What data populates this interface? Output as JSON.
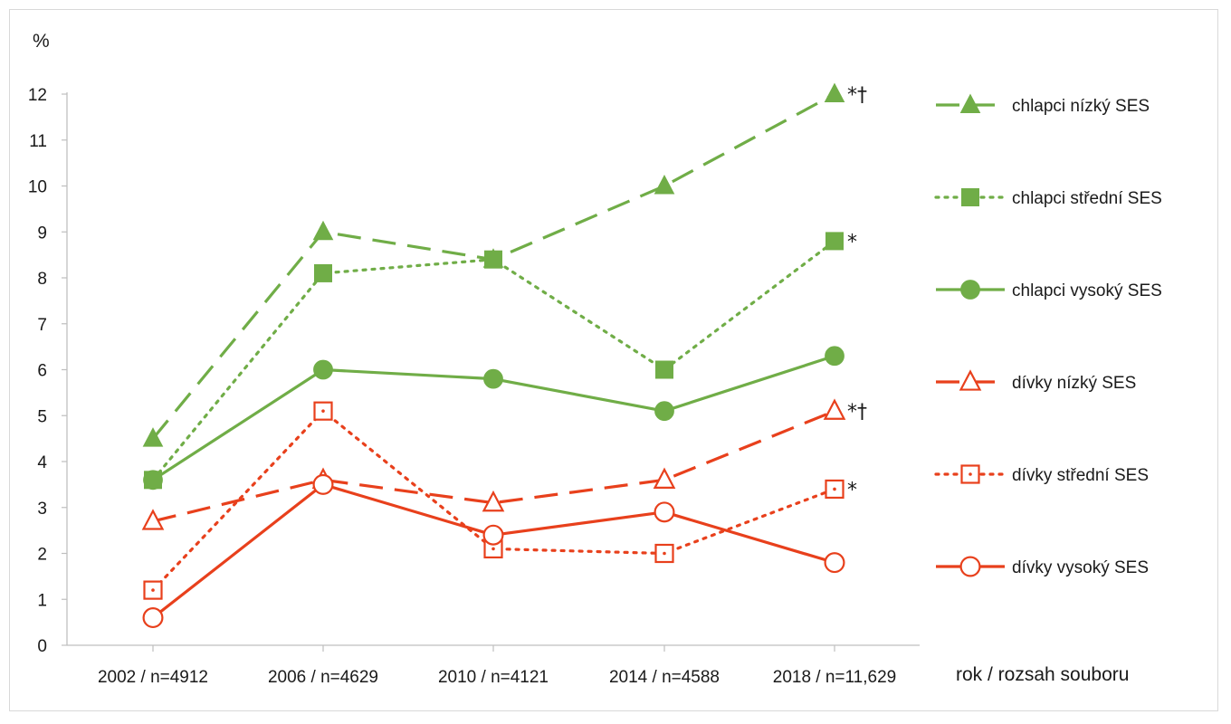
{
  "chart_data": {
    "type": "line",
    "ylabel": "%",
    "xlabel": "rok / rozsah souboru",
    "ylim": [
      0,
      12
    ],
    "yticks": [
      "0",
      "1",
      "2",
      "3",
      "4",
      "5",
      "6",
      "7",
      "8",
      "9",
      "10",
      "11",
      "12"
    ],
    "categories": [
      "2002 / n=4912",
      "2006 / n=4629",
      "2010 / n=4121",
      "2014 / n=4588",
      "2018 / n=11,629"
    ],
    "grid": false,
    "legend_position": "right",
    "colors": {
      "green": "#70ad47",
      "red": "#e8401c"
    },
    "series": [
      {
        "name": "chlapci nízký SES",
        "color": "#70ad47",
        "dash": "dashed",
        "marker": "triangle",
        "filled": true,
        "values": [
          4.5,
          9.0,
          8.4,
          10.0,
          12.0
        ],
        "annotation": "*†"
      },
      {
        "name": "chlapci střední SES",
        "color": "#70ad47",
        "dash": "dotted",
        "marker": "square",
        "filled": true,
        "values": [
          3.6,
          8.1,
          8.4,
          6.0,
          8.8
        ],
        "annotation": "*"
      },
      {
        "name": "chlapci vysoký SES",
        "color": "#70ad47",
        "dash": "solid",
        "marker": "circle",
        "filled": true,
        "values": [
          3.6,
          6.0,
          5.8,
          5.1,
          6.3
        ],
        "annotation": ""
      },
      {
        "name": "dívky nízký SES",
        "color": "#e8401c",
        "dash": "dashed",
        "marker": "triangle",
        "filled": false,
        "values": [
          2.7,
          3.6,
          3.1,
          3.6,
          5.1
        ],
        "annotation": "*†"
      },
      {
        "name": "dívky střední SES",
        "color": "#e8401c",
        "dash": "dotted",
        "marker": "square",
        "filled": false,
        "values": [
          1.2,
          5.1,
          2.1,
          2.0,
          3.4
        ],
        "annotation": "*"
      },
      {
        "name": "dívky vysoký SES",
        "color": "#e8401c",
        "dash": "solid",
        "marker": "circle",
        "filled": false,
        "values": [
          0.6,
          3.5,
          2.4,
          2.9,
          1.8
        ],
        "annotation": ""
      }
    ]
  }
}
